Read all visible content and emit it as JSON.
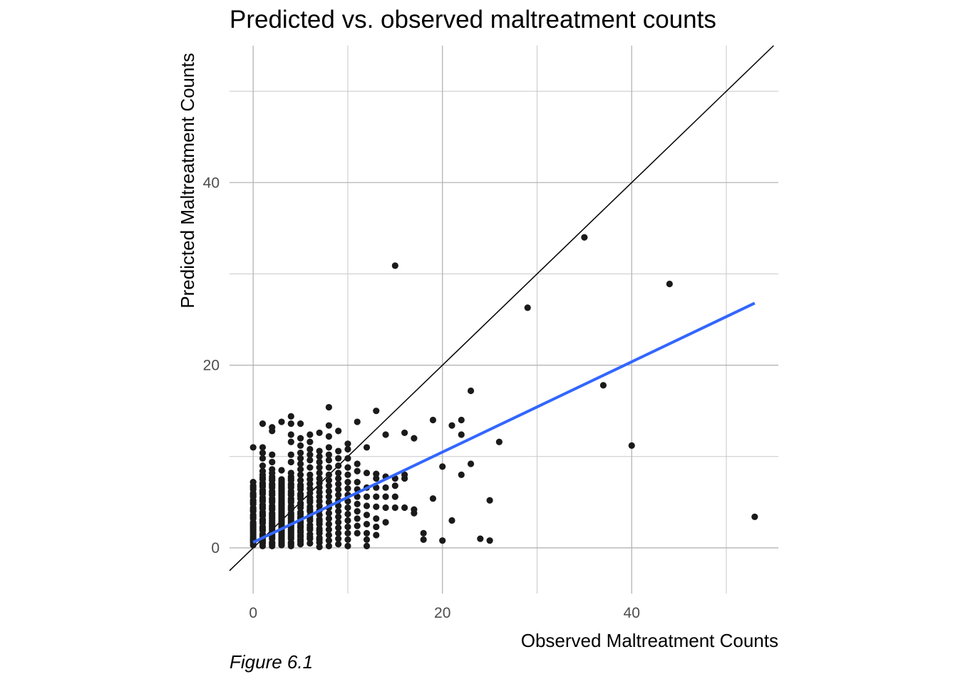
{
  "caption": "Figure 6.1",
  "chart_data": {
    "type": "scatter",
    "title": "Predicted vs. observed maltreatment counts",
    "xlabel": "Observed Maltreatment Counts",
    "ylabel": "Predicted Maltreatment Counts",
    "xlim": [
      -2.5,
      55.5
    ],
    "ylim": [
      -5,
      55
    ],
    "x_ticks": [
      0,
      20,
      40
    ],
    "y_ticks": [
      0,
      20,
      40
    ],
    "x_minor_grid": [
      10,
      30,
      50
    ],
    "y_minor_grid": [
      10,
      30,
      50
    ],
    "grid": true,
    "point_color": "#1a1a1a",
    "reference_line": {
      "slope": 1,
      "intercept": 0,
      "color": "#000000"
    },
    "fit_line": {
      "x": [
        0,
        53
      ],
      "y": [
        0.6,
        26.8
      ],
      "color": "#3366ff"
    },
    "series": [
      {
        "x": [
          0,
          0,
          0,
          0,
          0,
          0,
          0,
          0,
          0,
          0,
          0,
          0,
          0,
          0,
          0,
          0,
          0,
          0,
          0,
          0,
          0,
          0,
          0,
          0,
          0,
          0,
          0,
          0,
          0,
          0,
          1,
          1,
          1,
          1,
          1,
          1,
          1,
          1,
          1,
          1,
          1,
          1,
          1,
          1,
          1,
          1,
          1,
          1,
          1,
          1,
          1,
          1,
          1,
          1,
          1,
          1,
          1,
          1,
          1,
          1,
          1,
          1,
          1,
          1,
          1,
          1,
          1,
          2,
          2,
          2,
          2,
          2,
          2,
          2,
          2,
          2,
          2,
          2,
          2,
          2,
          2,
          2,
          2,
          2,
          2,
          2,
          2,
          2,
          2,
          2,
          2,
          2,
          2,
          2,
          2,
          2,
          2,
          2,
          2,
          2,
          2,
          2,
          2,
          2,
          2,
          2,
          3,
          3,
          3,
          3,
          3,
          3,
          3,
          3,
          3,
          3,
          3,
          3,
          3,
          3,
          3,
          3,
          3,
          3,
          3,
          3,
          3,
          3,
          3,
          3,
          3,
          3,
          3,
          3,
          3,
          3,
          3,
          3,
          3,
          3,
          3,
          3,
          3,
          3,
          3,
          4,
          4,
          4,
          4,
          4,
          4,
          4,
          4,
          4,
          4,
          4,
          4,
          4,
          4,
          4,
          4,
          4,
          4,
          4,
          4,
          4,
          4,
          4,
          4,
          4,
          4,
          4,
          4,
          4,
          4,
          4,
          4,
          4,
          4,
          4,
          4,
          4,
          4,
          4,
          4,
          5,
          5,
          5,
          5,
          5,
          5,
          5,
          5,
          5,
          5,
          5,
          5,
          5,
          5,
          5,
          5,
          5,
          5,
          5,
          5,
          5,
          5,
          5,
          5,
          5,
          5,
          5,
          5,
          5,
          5,
          5,
          5,
          5,
          6,
          6,
          6,
          6,
          6,
          6,
          6,
          6,
          6,
          6,
          6,
          6,
          6,
          6,
          6,
          6,
          6,
          6,
          6,
          6,
          6,
          6,
          6,
          6,
          6,
          6,
          6,
          7,
          7,
          7,
          7,
          7,
          7,
          7,
          7,
          7,
          7,
          7,
          7,
          7,
          7,
          7,
          7,
          7,
          7,
          7,
          7,
          7,
          7,
          7,
          7,
          7,
          8,
          8,
          8,
          8,
          8,
          8,
          8,
          8,
          8,
          8,
          8,
          8,
          8,
          8,
          8,
          8,
          8,
          8,
          8,
          8,
          8,
          9,
          9,
          9,
          9,
          9,
          9,
          9,
          9,
          9,
          9,
          9,
          9,
          9,
          9,
          9,
          9,
          9,
          9,
          10,
          10,
          10,
          10,
          10,
          10,
          10,
          10,
          10,
          10,
          10,
          10,
          10,
          10,
          10,
          10,
          11,
          11,
          11,
          11,
          11,
          11,
          11,
          11,
          11,
          11,
          11,
          12,
          12,
          12,
          12,
          12,
          12,
          12,
          12,
          12,
          12,
          13,
          13,
          13,
          13,
          13,
          13,
          13,
          13,
          13,
          14,
          14,
          14,
          14,
          14,
          14,
          15,
          15,
          15,
          15,
          15,
          16,
          16,
          16,
          16,
          17,
          17,
          17,
          18,
          18,
          19,
          19,
          20,
          20,
          21,
          21,
          22,
          22,
          22,
          23,
          23,
          24,
          25,
          25,
          26,
          29,
          35,
          37,
          40,
          44,
          53
        ],
        "y": [
          0.3,
          0.8,
          1.2,
          1.6,
          2.0,
          2.4,
          2.8,
          3.2,
          3.6,
          4.0,
          4.4,
          4.8,
          5.2,
          5.6,
          6.0,
          6.4,
          6.8,
          7.2,
          1.0,
          1.8,
          2.6,
          3.4,
          4.2,
          5.0,
          5.8,
          6.6,
          0.6,
          1.4,
          2.2,
          11.0,
          0.2,
          0.7,
          1.1,
          1.5,
          1.9,
          2.3,
          2.7,
          3.1,
          3.5,
          3.9,
          4.3,
          4.7,
          5.1,
          5.5,
          5.9,
          6.3,
          6.7,
          7.1,
          7.5,
          8.0,
          8.4,
          0.5,
          1.3,
          2.1,
          2.9,
          3.7,
          4.5,
          5.3,
          6.1,
          6.9,
          7.7,
          9.0,
          9.8,
          10.4,
          11.0,
          13.6,
          0.9,
          0.2,
          0.6,
          1.0,
          1.4,
          1.8,
          2.2,
          2.6,
          3.0,
          3.4,
          3.8,
          4.2,
          4.6,
          5.0,
          5.4,
          5.8,
          6.2,
          6.6,
          7.0,
          7.4,
          7.8,
          8.2,
          0.4,
          1.2,
          2.0,
          2.8,
          3.6,
          4.4,
          5.2,
          6.0,
          6.8,
          7.6,
          8.6,
          9.4,
          10.2,
          13.2,
          12.8,
          1.6,
          2.4,
          3.2,
          0.3,
          0.7,
          1.1,
          1.5,
          1.9,
          2.3,
          2.7,
          3.1,
          3.5,
          3.9,
          4.3,
          4.7,
          5.1,
          5.5,
          5.9,
          6.3,
          6.7,
          7.1,
          7.5,
          0.5,
          1.3,
          2.1,
          2.9,
          3.7,
          4.5,
          5.3,
          6.1,
          6.9,
          0.9,
          1.7,
          2.5,
          3.3,
          4.1,
          4.9,
          5.7,
          6.5,
          7.3,
          8.5,
          13.8,
          0.2,
          0.6,
          1.0,
          1.4,
          1.8,
          2.2,
          2.6,
          3.0,
          3.4,
          3.8,
          4.2,
          4.6,
          5.0,
          5.4,
          5.8,
          6.2,
          6.6,
          7.0,
          7.4,
          7.8,
          8.2,
          0.4,
          1.2,
          2.0,
          2.8,
          3.6,
          4.4,
          5.2,
          6.0,
          6.8,
          7.6,
          9.4,
          10.2,
          11.6,
          12.4,
          13.6,
          14.4,
          1.6,
          2.4,
          3.2,
          0.4,
          0.9,
          1.4,
          1.9,
          2.4,
          2.9,
          3.4,
          3.9,
          4.4,
          4.9,
          5.4,
          5.9,
          6.4,
          6.9,
          7.4,
          8.0,
          8.6,
          9.2,
          9.8,
          10.4,
          11.2,
          12.0,
          13.6,
          0.7,
          1.7,
          2.7,
          3.7,
          4.7,
          5.7,
          6.7,
          1.2,
          2.2,
          3.2,
          0.5,
          1.0,
          1.5,
          2.0,
          2.5,
          3.0,
          3.5,
          4.0,
          4.5,
          5.0,
          5.5,
          6.0,
          6.5,
          7.0,
          7.5,
          8.0,
          8.8,
          9.6,
          10.2,
          10.8,
          11.6,
          12.4,
          1.2,
          2.2,
          3.2,
          4.2,
          5.2,
          0.1,
          0.6,
          1.1,
          1.6,
          2.1,
          2.6,
          3.1,
          3.6,
          4.1,
          4.6,
          5.1,
          5.6,
          6.1,
          6.6,
          7.1,
          7.6,
          8.2,
          8.8,
          9.4,
          10.0,
          10.6,
          12.6,
          0.9,
          1.9,
          2.9,
          0.2,
          0.8,
          1.4,
          2.0,
          2.6,
          3.2,
          3.8,
          4.4,
          5.0,
          5.6,
          6.2,
          6.8,
          7.4,
          8.0,
          8.8,
          9.6,
          10.2,
          11.0,
          12.2,
          13.4,
          15.4,
          0.4,
          1.0,
          1.6,
          2.2,
          2.8,
          3.4,
          4.0,
          4.6,
          5.2,
          5.8,
          6.4,
          7.0,
          7.6,
          8.2,
          9.0,
          9.8,
          10.6,
          12.8,
          0.2,
          0.9,
          1.6,
          2.3,
          3.0,
          3.7,
          4.4,
          5.1,
          5.8,
          6.5,
          7.2,
          8.0,
          8.8,
          9.8,
          10.8,
          11.4,
          1.6,
          2.4,
          3.2,
          4.0,
          4.8,
          5.6,
          6.4,
          7.2,
          8.4,
          9.2,
          13.8,
          0.2,
          0.9,
          1.6,
          2.6,
          3.6,
          4.6,
          5.6,
          6.6,
          8.2,
          11.0,
          1.4,
          2.3,
          3.2,
          4.5,
          5.6,
          6.6,
          7.6,
          8.1,
          15.0,
          2.8,
          4.4,
          5.6,
          6.6,
          7.8,
          12.4,
          4.4,
          5.6,
          6.8,
          7.6,
          30.9,
          4.4,
          7.6,
          8.0,
          12.6,
          3.8,
          4.2,
          12.0,
          0.9,
          1.6,
          5.4,
          14.0,
          0.8,
          8.9,
          3.0,
          13.4,
          8.0,
          12.4,
          14.0,
          9.2,
          17.2,
          1.0,
          0.8,
          5.2,
          11.6,
          26.3,
          34.0,
          17.8,
          11.2,
          28.9,
          3.4
        ]
      }
    ]
  }
}
